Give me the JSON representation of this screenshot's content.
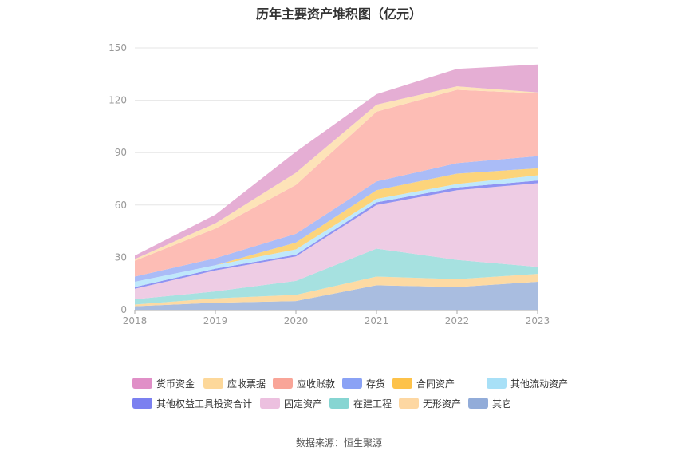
{
  "chart_data": {
    "type": "area",
    "stacked": true,
    "title": "历年主要资产堆积图（亿元）",
    "x": [
      "2018",
      "2019",
      "2020",
      "2021",
      "2022",
      "2023"
    ],
    "ylim": [
      0,
      150
    ],
    "yticks": [
      "0",
      "30",
      "60",
      "90",
      "120",
      "150"
    ],
    "grid": true,
    "legend_position": "bottom",
    "series": [
      {
        "name": "其它",
        "color": "#a9bde0",
        "values": [
          2,
          4,
          5,
          14,
          13,
          16
        ]
      },
      {
        "name": "无形资产",
        "color": "#fddaa3",
        "values": [
          1,
          2.5,
          3.5,
          5,
          4.5,
          4.5
        ]
      },
      {
        "name": "在建工程",
        "color": "#a6e1e0",
        "values": [
          3,
          4,
          8,
          16,
          11,
          4
        ]
      },
      {
        "name": "固定资产",
        "color": "#eecce4",
        "values": [
          6,
          12,
          14,
          25,
          40,
          48
        ]
      },
      {
        "name": "其他权益工具投资合计",
        "color": "#8f93f2",
        "values": [
          1,
          1,
          1,
          1.5,
          1.5,
          1.5
        ]
      },
      {
        "name": "其他流动资产",
        "color": "#bfe8fb",
        "values": [
          3,
          2,
          3,
          2,
          2,
          3
        ]
      },
      {
        "name": "合同资产",
        "color": "#fcd47b",
        "values": [
          0,
          0,
          4,
          5,
          6,
          4
        ]
      },
      {
        "name": "存货",
        "color": "#aabcf7",
        "values": [
          3,
          4,
          5,
          5,
          6,
          7
        ]
      },
      {
        "name": "应收账款",
        "color": "#fdbdb5",
        "values": [
          9,
          17,
          28,
          40,
          42,
          36
        ]
      },
      {
        "name": "应收票据",
        "color": "#fde3b8",
        "values": [
          1,
          3,
          7,
          4,
          2,
          0.5
        ]
      },
      {
        "name": "货币资金",
        "color": "#e5aed4",
        "values": [
          2,
          5,
          12,
          6,
          10,
          16
        ]
      }
    ],
    "legend_order": [
      "货币资金",
      "应收票据",
      "应收账款",
      "存货",
      "合同资产",
      "其他流动资产",
      "其他权益工具投资合计",
      "固定资产",
      "在建工程",
      "无形资产",
      "其它"
    ],
    "legend_colors": {
      "货币资金": "#e08fc7",
      "应收票据": "#fdd89a",
      "应收账款": "#f9a598",
      "存货": "#8aa2f5",
      "合同资产": "#fdc24a",
      "其他流动资产": "#a8e0f7",
      "其他权益工具投资合计": "#7b80f0",
      "固定资产": "#ecc0df",
      "在建工程": "#86d5d2",
      "无形资产": "#fdd7a2",
      "其它": "#92acd9"
    }
  },
  "source": "数据来源：恒生聚源"
}
